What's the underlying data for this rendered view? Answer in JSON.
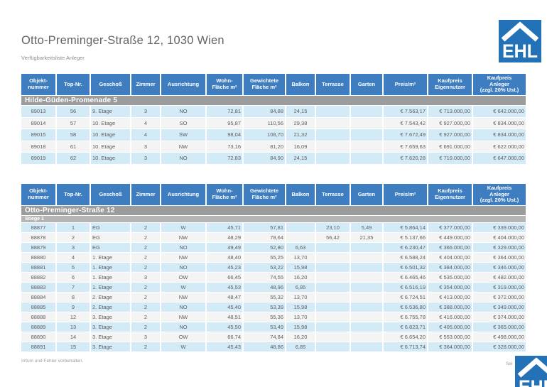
{
  "page": {
    "title": "Otto-Preminger-Straße 12, 1030 Wien",
    "subtitle": "Verfügbarkeitsliste Anleger",
    "footer_left": "Irrtum und Fehler vorbehalten.",
    "footer_right": "Sei",
    "logo_text": "EHL"
  },
  "colors": {
    "header_blue": "#3e7ec0",
    "band_gray": "#9c9c9c",
    "subband_gray": "#b5b5b5",
    "row_blue": "#d3eaf7",
    "row_alt": "#f4f4f4",
    "logo_blue": "#2372b8"
  },
  "columns": [
    "Objekt-\nnummer",
    "Top-Nr.",
    "Geschoß",
    "Zimmer",
    "Ausrichtung",
    "Wohn-\nFläche m²",
    "Gewichtete\nFläche m²",
    "Balkon",
    "Terrasse",
    "Garten",
    "Preis/m²",
    "Kaufpreis\nEigennutzer",
    "Kaufpreis\nAnleger\n(zzgl. 20% Ust.)"
  ],
  "tables": [
    {
      "section": "Hilde-Güden-Promenade 5",
      "rows": [
        [
          "89013",
          "56",
          "9. Etage",
          "3",
          "NO",
          "72,81",
          "84,88",
          "24,15",
          "",
          "",
          "€ 7.563,17",
          "€ 713.000,00",
          "€ 642.000,00"
        ],
        [
          "89014",
          "57",
          "10. Etage",
          "4",
          "SO",
          "95,87",
          "110,56",
          "29,38",
          "",
          "",
          "€ 7.543,42",
          "€ 927.000,00",
          "€ 834.000,00"
        ],
        [
          "89015",
          "58",
          "10. Etage",
          "4",
          "SW",
          "98,04",
          "108,70",
          "21,32",
          "",
          "",
          "€ 7.672,49",
          "€ 927.000,00",
          "€ 834.000,00"
        ],
        [
          "89018",
          "61",
          "10. Etage",
          "3",
          "NW",
          "73,16",
          "81,20",
          "16,09",
          "",
          "",
          "€ 7.659,63",
          "€ 691.000,00",
          "€ 622.000,00"
        ],
        [
          "89019",
          "62",
          "10. Etage",
          "3",
          "NO",
          "72,83",
          "84,90",
          "24,15",
          "",
          "",
          "€ 7.620,28",
          "€ 719.000,00",
          "€ 647.000,00"
        ]
      ]
    },
    {
      "section": "Otto-Preminger-Straße 12",
      "subsection": "Stiege 1",
      "rows": [
        [
          "88877",
          "1",
          "EG",
          "2",
          "W",
          "45,71",
          "57,81",
          "",
          "23,10",
          "5,49",
          "€ 5.864,14",
          "€ 377.000,00",
          "€ 339.000,00"
        ],
        [
          "88878",
          "2",
          "EG",
          "2",
          "NW",
          "48,29",
          "78,64",
          "",
          "56,42",
          "21,35",
          "€ 5.137,66",
          "€ 449.000,00",
          "€ 404.000,00"
        ],
        [
          "88879",
          "3",
          "EG",
          "2",
          "NO",
          "49,49",
          "52,80",
          "6,63",
          "",
          "",
          "€ 6.230,47",
          "€ 366.000,00",
          "€ 329.000,00"
        ],
        [
          "88880",
          "4",
          "1. Etage",
          "2",
          "NW",
          "48,40",
          "55,25",
          "13,70",
          "",
          "",
          "€ 6.588,24",
          "€ 404.000,00",
          "€ 364.000,00"
        ],
        [
          "88881",
          "5",
          "1. Etage",
          "2",
          "NO",
          "45,23",
          "53,22",
          "15,98",
          "",
          "",
          "€ 6.501,32",
          "€ 384.000,00",
          "€ 346.000,00"
        ],
        [
          "88882",
          "6",
          "1. Etage",
          "3",
          "OW",
          "66,45",
          "74,55",
          "16,20",
          "",
          "",
          "€ 6.465,46",
          "€ 535.000,00",
          "€ 482.000,00"
        ],
        [
          "88883",
          "7",
          "1. Etage",
          "2",
          "W",
          "45,53",
          "48,96",
          "6,85",
          "",
          "",
          "€ 6.516,19",
          "€ 354.000,00",
          "€ 319.000,00"
        ],
        [
          "88884",
          "8",
          "2. Etage",
          "2",
          "NW",
          "48,47",
          "55,32",
          "13,70",
          "",
          "",
          "€ 6.724,51",
          "€ 413.000,00",
          "€ 372.000,00"
        ],
        [
          "88885",
          "9",
          "2. Etage",
          "2",
          "NO",
          "45,40",
          "53,39",
          "15,98",
          "",
          "",
          "€ 6.536,80",
          "€ 388.000,00",
          "€ 349.000,00"
        ],
        [
          "88888",
          "12",
          "3. Etage",
          "2",
          "NW",
          "48,51",
          "55,36",
          "13,70",
          "",
          "",
          "€ 6.755,78",
          "€ 416.000,00",
          "€ 374.000,00"
        ],
        [
          "88889",
          "13",
          "3. Etage",
          "2",
          "NO",
          "45,50",
          "53,49",
          "15,98",
          "",
          "",
          "€ 6.823,71",
          "€ 405.000,00",
          "€ 365.000,00"
        ],
        [
          "88890",
          "14",
          "3. Etage",
          "3",
          "OW",
          "66,74",
          "74,84",
          "16,20",
          "",
          "",
          "€ 6.654,20",
          "€ 553.000,00",
          "€ 498.000,00"
        ],
        [
          "88891",
          "15",
          "3. Etage",
          "2",
          "W",
          "45,43",
          "48,86",
          "6,85",
          "",
          "",
          "€ 6.713,74",
          "€ 364.000,00",
          "€ 328.000,00"
        ]
      ]
    }
  ]
}
